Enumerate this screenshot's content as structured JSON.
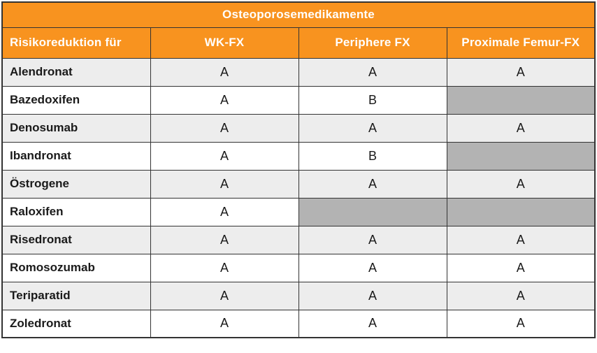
{
  "table": {
    "title": "Osteoporosemedikamente",
    "columns": [
      "Risikoreduktion für",
      "WK-FX",
      "Periphere FX",
      "Proximale Femur-FX"
    ],
    "rows": [
      {
        "name": "Alendronat",
        "values": [
          "A",
          "A",
          "A"
        ]
      },
      {
        "name": "Bazedoxifen",
        "values": [
          "A",
          "B",
          ""
        ]
      },
      {
        "name": "Denosumab",
        "values": [
          "A",
          "A",
          "A"
        ]
      },
      {
        "name": "Ibandronat",
        "values": [
          "A",
          "B",
          ""
        ]
      },
      {
        "name": "Östrogene",
        "values": [
          "A",
          "A",
          "A"
        ]
      },
      {
        "name": "Raloxifen",
        "values": [
          "A",
          "",
          ""
        ]
      },
      {
        "name": "Risedronat",
        "values": [
          "A",
          "A",
          "A"
        ]
      },
      {
        "name": "Romosozumab",
        "values": [
          "A",
          "A",
          "A"
        ]
      },
      {
        "name": "Teriparatid",
        "values": [
          "A",
          "A",
          "A"
        ]
      },
      {
        "name": "Zoledronat",
        "values": [
          "A",
          "A",
          "A"
        ]
      }
    ]
  },
  "colors": {
    "accent": "#F8931F",
    "header_text": "#FFFFFF",
    "body_text": "#1A1A1A",
    "row_alt": "#EDEDED",
    "row_plain": "#FFFFFF",
    "nodata_cell": "#B3B3B3",
    "border": "#333333"
  }
}
